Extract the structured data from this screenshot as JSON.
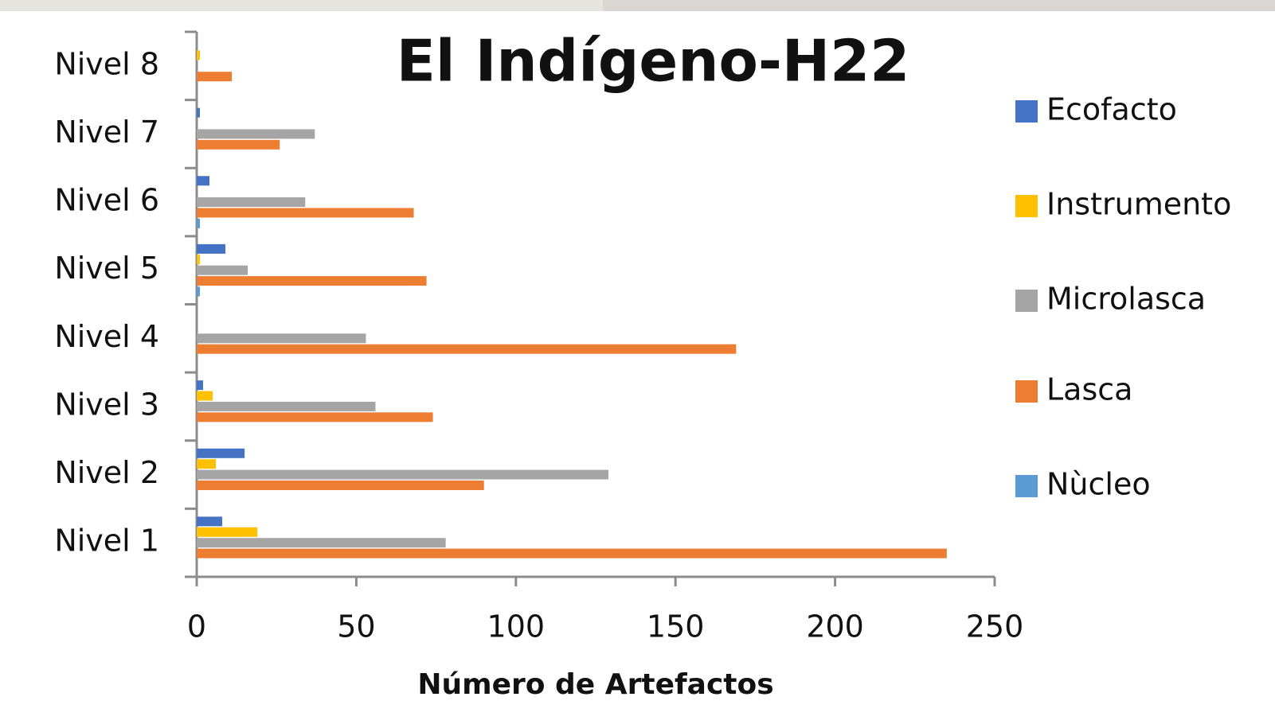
{
  "chart_data": {
    "type": "hbar",
    "title": "El Indígeno-H22",
    "x_label": "Número de Artefactos",
    "categories": [
      "Nivel 1",
      "Nivel 2",
      "Nivel 3",
      "Nivel 4",
      "Nivel 5",
      "Nivel 6",
      "Nivel 7",
      "Nivel 8"
    ],
    "series": [
      {
        "name": "Ecofacto",
        "color": "#4472c4",
        "values": [
          8,
          15,
          2,
          0,
          9,
          4,
          1,
          0
        ]
      },
      {
        "name": "Instrumento",
        "color": "#ffc000",
        "values": [
          19,
          6,
          5,
          0,
          1,
          0,
          0,
          1
        ]
      },
      {
        "name": "Microlasca",
        "color": "#a5a5a5",
        "values": [
          78,
          129,
          56,
          53,
          16,
          34,
          37,
          0
        ]
      },
      {
        "name": "Lasca",
        "color": "#ed7d31",
        "values": [
          235,
          90,
          74,
          169,
          72,
          68,
          26,
          11
        ]
      },
      {
        "name": "Nùcleo",
        "color": "#5b9bd5",
        "values": [
          0,
          0,
          0,
          0,
          1,
          1,
          0,
          0
        ]
      }
    ],
    "xlim": [
      0,
      250
    ],
    "xticks": [
      0,
      50,
      100,
      150,
      200,
      250
    ],
    "legend": "right"
  }
}
